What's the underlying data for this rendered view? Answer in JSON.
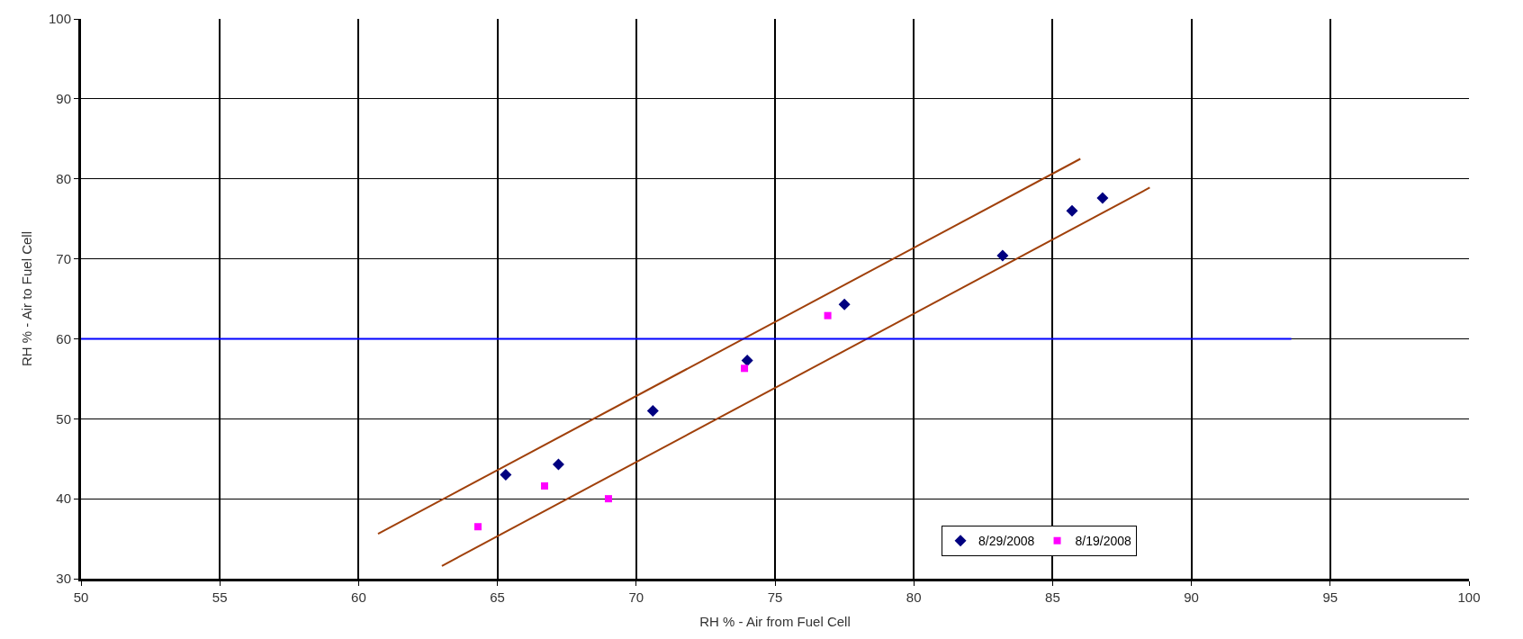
{
  "chart_data": {
    "type": "scatter",
    "xlabel": "RH % - Air from Fuel Cell",
    "ylabel": "RH % - Air to Fuel Cell",
    "xlim": [
      50,
      100
    ],
    "xticks": [
      50,
      55,
      60,
      65,
      70,
      75,
      80,
      85,
      90,
      95,
      100
    ],
    "ylim": [
      30,
      100
    ],
    "yticks": [
      30,
      40,
      50,
      60,
      70,
      80,
      90,
      100
    ],
    "grid": true,
    "legend": "bottom right",
    "series": [
      {
        "name": "8/29/2008",
        "color": "#000080",
        "marker": "diamond",
        "x": [
          65.3,
          67.2,
          70.6,
          74.0,
          77.5,
          83.2,
          85.7,
          86.8
        ],
        "values": [
          43.0,
          44.3,
          51.0,
          57.3,
          64.3,
          70.4,
          76.0,
          77.6
        ]
      },
      {
        "name": "8/19/2008",
        "color": "#ff00ff",
        "marker": "square",
        "x": [
          64.3,
          66.7,
          69.0,
          73.9,
          76.9
        ],
        "values": [
          36.5,
          41.6,
          40.0,
          56.3,
          62.9
        ]
      },
      {
        "type": "line",
        "color": "#a0400a",
        "marker": "none",
        "x": [
          60.7,
          86.0
        ],
        "values": [
          35.6,
          82.5
        ]
      },
      {
        "type": "line",
        "color": "#a0400a",
        "marker": "none",
        "x": [
          63.0,
          88.5
        ],
        "values": [
          31.6,
          78.9
        ]
      },
      {
        "type": "line",
        "color": "#0000ff",
        "marker": "none",
        "x": [
          50,
          93.6
        ],
        "values": [
          60,
          60
        ]
      }
    ]
  }
}
